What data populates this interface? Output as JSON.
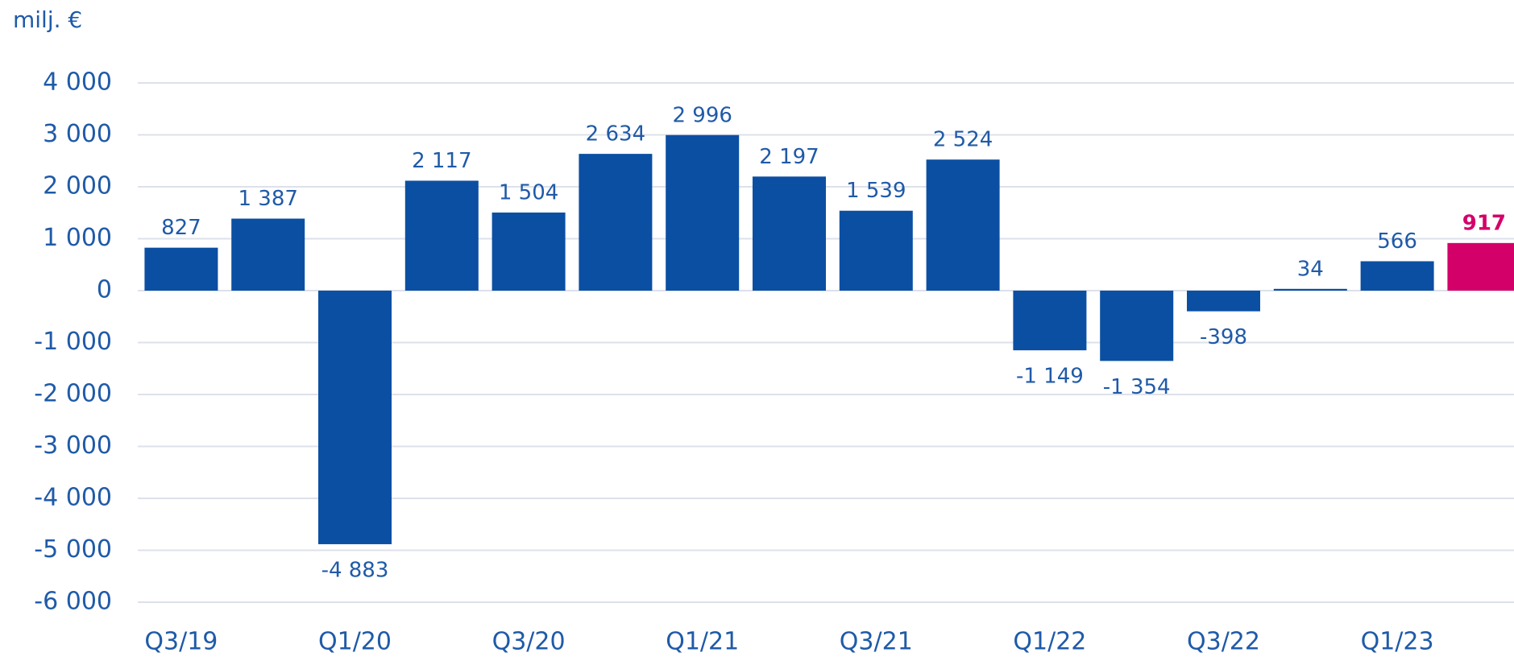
{
  "chart_data": {
    "type": "bar",
    "unit_label": "milj. €",
    "categories": [
      "Q3/19",
      null,
      "Q1/20",
      null,
      "Q3/20",
      null,
      "Q1/21",
      null,
      "Q3/21",
      null,
      "Q1/22",
      null,
      "Q3/22",
      null,
      "Q1/23",
      null
    ],
    "values": [
      827,
      1387,
      -4883,
      2117,
      1504,
      2634,
      2996,
      2197,
      1539,
      2524,
      -1149,
      -1354,
      -398,
      34,
      566,
      917
    ],
    "value_labels": [
      "827",
      "1 387",
      "-4 883",
      "2 117",
      "1 504",
      "2 634",
      "2 996",
      "2 197",
      "1 539",
      "2 524",
      "-1 149",
      "-1 354",
      "-398",
      "34",
      "566",
      "917"
    ],
    "colors": [
      "#0b4fa3",
      "#0b4fa3",
      "#0b4fa3",
      "#0b4fa3",
      "#0b4fa3",
      "#0b4fa3",
      "#0b4fa3",
      "#0b4fa3",
      "#0b4fa3",
      "#0b4fa3",
      "#0b4fa3",
      "#0b4fa3",
      "#0b4fa3",
      "#0b4fa3",
      "#0b4fa3",
      "#d4006a"
    ],
    "ylim": [
      -6000,
      4000
    ],
    "yticks": [
      {
        "value": -6000,
        "label": "-6 000"
      },
      {
        "value": -5000,
        "label": "-5 000"
      },
      {
        "value": -4000,
        "label": "-4 000"
      },
      {
        "value": -3000,
        "label": "-3 000"
      },
      {
        "value": -2000,
        "label": "-2 000"
      },
      {
        "value": -1000,
        "label": "-1 000"
      },
      0,
      {
        "value": 1000,
        "label": "1 000"
      },
      {
        "value": 2000,
        "label": "2 000"
      },
      {
        "value": 3000,
        "label": "3 000"
      },
      {
        "value": 4000,
        "label": "4 000"
      }
    ],
    "grid": true
  }
}
